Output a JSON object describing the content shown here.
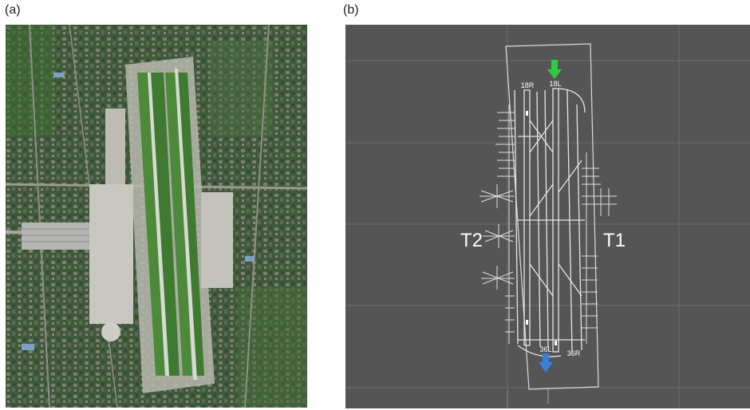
{
  "panels": {
    "a": {
      "label": "(a)"
    },
    "b": {
      "label": "(b)"
    }
  },
  "map": {
    "runways": {
      "rw_18r": "18R",
      "rw_18l": "18L",
      "rw_36l": "36L",
      "rw_36r": "36R"
    },
    "terminals": {
      "t1": "T1",
      "t2": "T2"
    },
    "arrow_colors": {
      "arrival": "#2ecc40",
      "departure": "#3b7fd9"
    }
  }
}
